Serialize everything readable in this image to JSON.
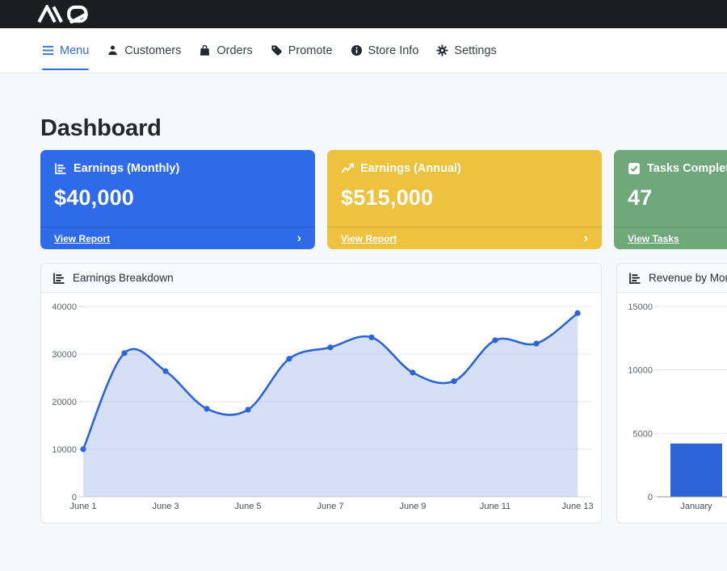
{
  "topbar": {
    "brand": "AQ"
  },
  "nav": {
    "items": [
      {
        "label": "Menu",
        "active": true
      },
      {
        "label": "Customers",
        "active": false
      },
      {
        "label": "Orders",
        "active": false
      },
      {
        "label": "Promote",
        "active": false
      },
      {
        "label": "Store Info",
        "active": false
      },
      {
        "label": "Settings",
        "active": false
      }
    ]
  },
  "page": {
    "title": "Dashboard"
  },
  "stat_cards": [
    {
      "title": "Earnings (Monthly)",
      "value": "$40,000",
      "link_label": "View Report",
      "chevron": "›",
      "color": "#2f6ae8",
      "icon": "bar-chart-icon"
    },
    {
      "title": "Earnings (Annual)",
      "value": "$515,000",
      "link_label": "View Report",
      "chevron": "›",
      "color": "#edc23e",
      "icon": "line-chart-icon"
    },
    {
      "title": "Tasks Completed",
      "value": "47",
      "link_label": "View Tasks",
      "chevron": "›",
      "color": "#6fa87b",
      "icon": "check-square-icon"
    }
  ],
  "chart_data": [
    {
      "type": "area",
      "title": "Earnings Breakdown",
      "x": [
        "June 1",
        "June 2",
        "June 3",
        "June 4",
        "June 5",
        "June 6",
        "June 7",
        "June 8",
        "June 9",
        "June 10",
        "June 11",
        "June 12",
        "June 13"
      ],
      "values": [
        10000,
        30200,
        26400,
        18500,
        18300,
        29000,
        31400,
        33500,
        26100,
        24300,
        32900,
        32200,
        38600
      ],
      "xtick_labels": [
        "June 1",
        "June 3",
        "June 5",
        "June 7",
        "June 9",
        "June 11",
        "June 13"
      ],
      "yticks": [
        0,
        10000,
        20000,
        30000,
        40000
      ],
      "ylim": [
        0,
        40000
      ],
      "grid": true,
      "legend": "none",
      "line_color": "#2d65d6",
      "fill_color": "rgba(45,101,214,0.2)"
    },
    {
      "type": "bar",
      "title": "Revenue by Month",
      "categories": [
        "January"
      ],
      "values": [
        4200
      ],
      "yticks": [
        0,
        5000,
        10000,
        15000
      ],
      "ylim": [
        0,
        15000
      ],
      "grid": true,
      "legend": "none",
      "bar_color": "#2d65d6"
    }
  ]
}
